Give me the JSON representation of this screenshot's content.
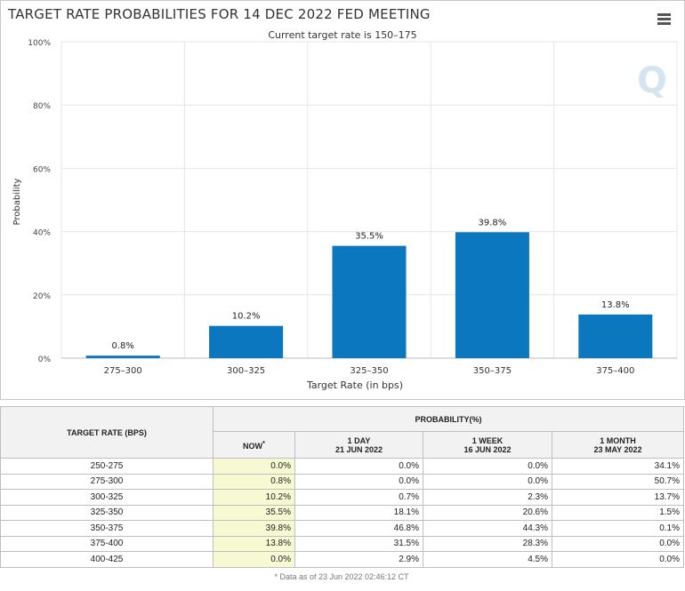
{
  "header": {
    "title": "TARGET RATE PROBABILITIES FOR 14 DEC 2022 FED MEETING",
    "menu_icon": "hamburger-menu-icon"
  },
  "colors": {
    "bar": "#0b77bf",
    "grid": "#e6e6e6",
    "now_cell": "#f7f9d2"
  },
  "chart_data": {
    "type": "bar",
    "title": "TARGET RATE PROBABILITIES FOR 14 DEC 2022 FED MEETING",
    "subtitle": "Current target rate is 150–175",
    "categories": [
      "275–300",
      "300–325",
      "325–350",
      "350–375",
      "375–400"
    ],
    "values": [
      0.8,
      10.2,
      35.5,
      39.8,
      13.8
    ],
    "data_labels": [
      "0.8%",
      "10.2%",
      "35.5%",
      "39.8%",
      "13.8%"
    ],
    "xlabel": "Target Rate (in bps)",
    "ylabel": "Probability",
    "ylim": [
      0,
      100
    ],
    "yticks": [
      0,
      20,
      40,
      60,
      80,
      100
    ],
    "ytick_labels": [
      "0%",
      "20%",
      "40%",
      "60%",
      "80%",
      "100%"
    ],
    "grid": true,
    "watermark": "Q"
  },
  "table": {
    "col_header_rate": "TARGET RATE (BPS)",
    "col_header_prob": "PROBABILITY(%)",
    "subheaders": [
      {
        "line1": "NOW",
        "line2": "",
        "marker": "*"
      },
      {
        "line1": "1 DAY",
        "line2": "21 JUN 2022",
        "marker": ""
      },
      {
        "line1": "1 WEEK",
        "line2": "16 JUN 2022",
        "marker": ""
      },
      {
        "line1": "1 MONTH",
        "line2": "23 MAY 2022",
        "marker": ""
      }
    ],
    "rows": [
      {
        "rate": "250-275",
        "now": "0.0%",
        "day": "0.0%",
        "week": "0.0%",
        "month": "34.1%"
      },
      {
        "rate": "275-300",
        "now": "0.8%",
        "day": "0.0%",
        "week": "0.0%",
        "month": "50.7%"
      },
      {
        "rate": "300-325",
        "now": "10.2%",
        "day": "0.7%",
        "week": "2.3%",
        "month": "13.7%"
      },
      {
        "rate": "325-350",
        "now": "35.5%",
        "day": "18.1%",
        "week": "20.6%",
        "month": "1.5%"
      },
      {
        "rate": "350-375",
        "now": "39.8%",
        "day": "46.8%",
        "week": "44.3%",
        "month": "0.1%"
      },
      {
        "rate": "375-400",
        "now": "13.8%",
        "day": "31.5%",
        "week": "28.3%",
        "month": "0.0%"
      },
      {
        "rate": "400-425",
        "now": "0.0%",
        "day": "2.9%",
        "week": "4.5%",
        "month": "0.0%"
      }
    ],
    "footnote": "* Data as of 23 Jun 2022 02:46:12 CT"
  }
}
